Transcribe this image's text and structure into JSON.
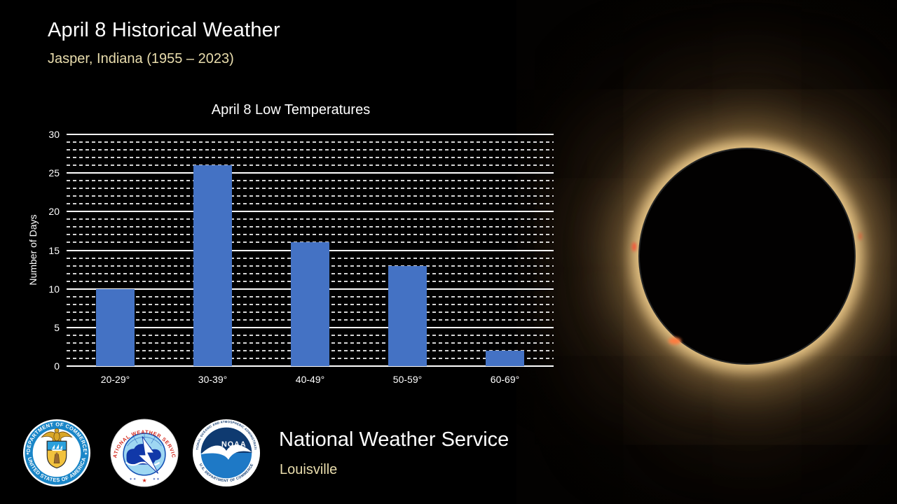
{
  "slide": {
    "title": "April 8 Historical Weather",
    "subtitle": "Jasper, Indiana (1955 – 2023)"
  },
  "chart_data": {
    "type": "bar",
    "title": "April 8 Low Temperatures",
    "categories": [
      "20-29°",
      "30-39°",
      "40-49°",
      "50-59°",
      "60-69°"
    ],
    "values": [
      10,
      26,
      16,
      13,
      2
    ],
    "xlabel": "",
    "ylabel": "Number of Days",
    "ylim": [
      0,
      30
    ],
    "yticks": [
      0,
      5,
      10,
      15,
      20,
      25,
      30
    ],
    "ytick_interval": 5,
    "minor_grid_interval": 1,
    "grid": "on",
    "legend": "none",
    "bar_color": "#4472c4"
  },
  "footer": {
    "org": "National Weather Service",
    "office": "Louisville"
  },
  "logos": {
    "doc": {
      "text_top": "DEPARTMENT OF COMMERCE",
      "text_bottom": "UNITED STATES OF AMERICA",
      "star": "✶"
    },
    "nws": {
      "text": "NATIONAL WEATHER SERVICE",
      "stars_side": "✶ ✶",
      "star_center": "★"
    },
    "noaa": {
      "label": "NOAA",
      "text_top": "NATIONAL OCEANIC AND ATMOSPHERIC ADMINISTRATION",
      "text_bottom": "U.S. DEPARTMENT OF COMMERCE"
    }
  },
  "colors": {
    "bar_blue": "#4472c4",
    "cream_text": "#e9ddad",
    "corona_gold": "#e8c37f",
    "background": "#000000"
  }
}
